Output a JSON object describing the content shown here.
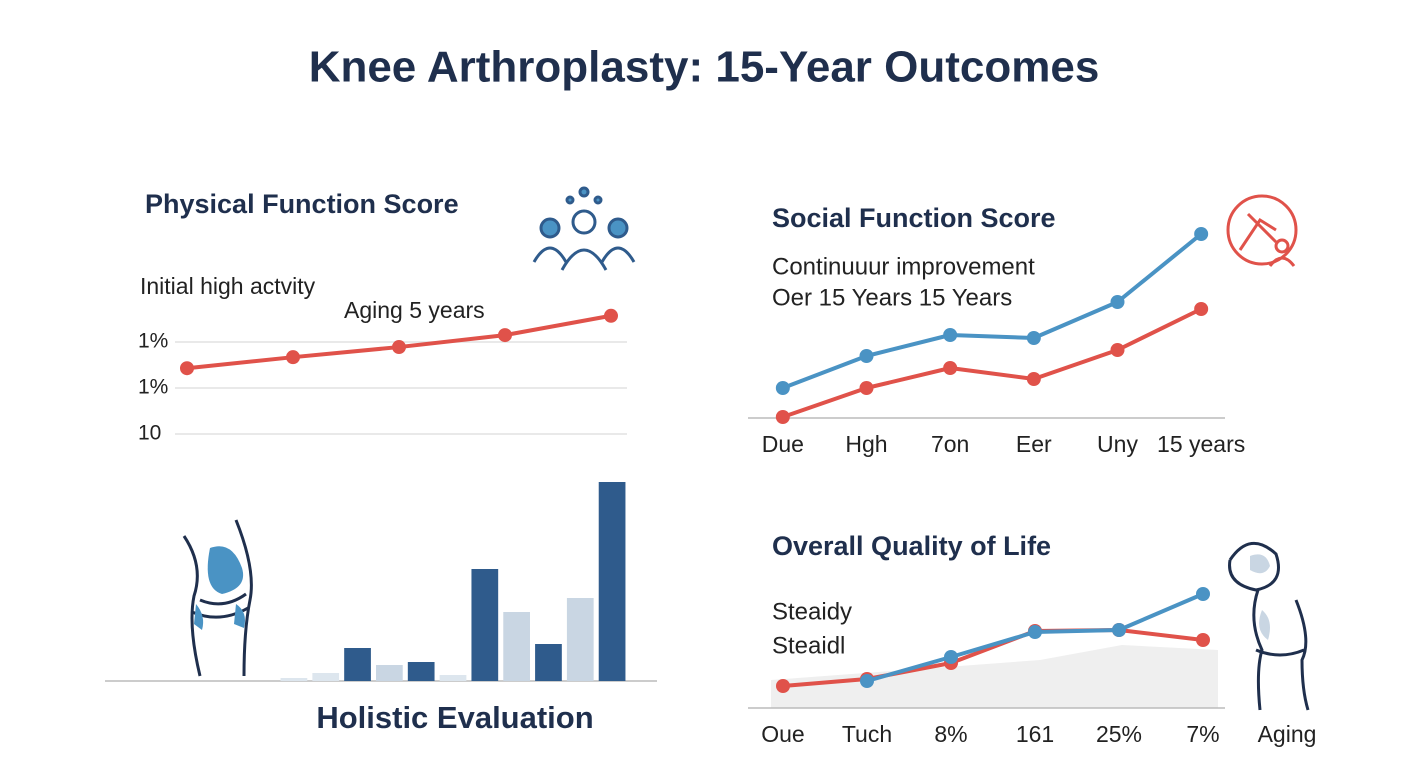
{
  "title": "Knee Arthroplasty: 15-Year Outcomes",
  "chart_data": [
    {
      "type": "line",
      "title": "Physical Function Score",
      "annotations": [
        "Initial high actvity",
        "Aging 5 years"
      ],
      "categories": [
        null,
        null,
        null,
        null,
        null
      ],
      "series": [
        {
          "color": "#e0524a",
          "values": [
            24.3,
            26.7,
            28.9,
            31.5,
            35.7
          ]
        }
      ],
      "ylim": [
        10,
        40
      ],
      "yticks": [
        {
          "value": 30,
          "label": "1%"
        },
        {
          "value": 20,
          "label": "1%"
        },
        10
      ],
      "grid": true
    },
    {
      "type": "line",
      "title": "Social Function Score",
      "subtitle": [
        "Continuuur improvement",
        "Oer 15 Years 15 Years"
      ],
      "categories": [
        "Due",
        "Hgh",
        "7on",
        "Eer",
        "Uny",
        "15 years"
      ],
      "series": [
        {
          "color": "#4a93c4",
          "values": [
            15,
            31,
            41.5,
            40,
            58,
            92
          ]
        },
        {
          "color": "#e0524a",
          "values": [
            0.5,
            15,
            25,
            19.5,
            34,
            54.5
          ]
        }
      ],
      "ylim": [
        0,
        100
      ]
    },
    {
      "type": "bar",
      "title": "Holistic Evaluation",
      "categories": [
        null,
        null,
        null,
        null,
        null,
        null,
        null,
        null,
        null,
        null,
        null
      ],
      "values": [
        3,
        8,
        33,
        16,
        19,
        6,
        112,
        69,
        37,
        83,
        199
      ],
      "colors": [
        "#dde6ee",
        "#dde6ee",
        "#2f5b8c",
        "#c9d6e3",
        "#2f5b8c",
        "#dde6ee",
        "#2f5b8c",
        "#c9d6e3",
        "#2f5b8c",
        "#c9d6e3",
        "#2f5b8c"
      ],
      "ylim": [
        0,
        210
      ]
    },
    {
      "type": "line",
      "title": "Overall Quality of Life",
      "subtitle": [
        "Steaidy",
        "Steaidl"
      ],
      "categories": [
        "Oue",
        "Tuch",
        "8%",
        "161",
        "25%",
        "7%",
        "Aging"
      ],
      "series": [
        {
          "color": "#e0524a",
          "values": [
            22,
            29,
            45,
            77,
            78,
            68,
            null
          ]
        },
        {
          "color": "#4a93c4",
          "values": [
            null,
            27,
            51,
            76,
            78,
            114,
            null
          ]
        }
      ],
      "ylim": [
        0,
        130
      ]
    }
  ]
}
